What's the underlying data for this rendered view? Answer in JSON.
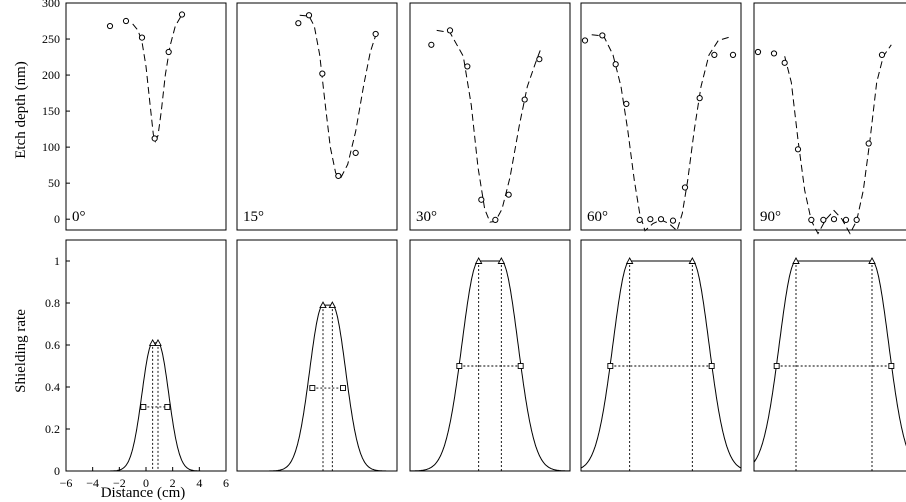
{
  "chart_data": {
    "type": "scatter",
    "layout": "2 rows x 5 columns, shared axes per row",
    "x_range": [
      -6,
      6
    ],
    "x_ticks": [
      -6,
      -4,
      -2,
      0,
      2,
      4,
      6
    ],
    "xlabel": "Distance (cm)",
    "top_row": {
      "ylabel": "Etch depth (nm)",
      "ylim": [
        -15,
        300
      ],
      "y_ticks": [
        0,
        50,
        100,
        150,
        200,
        250,
        300
      ],
      "series_note": "circles = measured points, dashed line = fitted profile",
      "panels": [
        {
          "label": "0°",
          "points": [
            [
              -2.7,
              268
            ],
            [
              -1.5,
              275
            ],
            [
              -0.3,
              252
            ],
            [
              0.65,
              112
            ],
            [
              1.7,
              232
            ],
            [
              2.7,
              284
            ]
          ],
          "curve": [
            [
              -1.0,
              271
            ],
            [
              -0.6,
              262
            ],
            [
              -0.3,
              246
            ],
            [
              0,
              212
            ],
            [
              0.3,
              160
            ],
            [
              0.55,
              118
            ],
            [
              0.7,
              108
            ],
            [
              0.9,
              116
            ],
            [
              1.15,
              150
            ],
            [
              1.45,
              200
            ],
            [
              1.8,
              240
            ],
            [
              2.2,
              268
            ],
            [
              2.7,
              284
            ]
          ]
        },
        {
          "label": "15°",
          "points": [
            [
              -1.4,
              272
            ],
            [
              -0.6,
              283
            ],
            [
              0.4,
              202
            ],
            [
              1.6,
              60
            ],
            [
              2.9,
              92
            ],
            [
              4.4,
              257
            ]
          ],
          "curve": [
            [
              -1.3,
              283
            ],
            [
              -0.6,
              282
            ],
            [
              -0.2,
              268
            ],
            [
              0.2,
              228
            ],
            [
              0.6,
              162
            ],
            [
              1.0,
              100
            ],
            [
              1.4,
              64
            ],
            [
              1.8,
              58
            ],
            [
              2.3,
              76
            ],
            [
              2.9,
              122
            ],
            [
              3.5,
              186
            ],
            [
              4.0,
              232
            ],
            [
              4.4,
              255
            ]
          ]
        },
        {
          "label": "30°",
          "points": [
            [
              -4.4,
              242
            ],
            [
              -3.0,
              262
            ],
            [
              -1.7,
              212
            ],
            [
              -0.65,
              27
            ],
            [
              0.4,
              -1
            ],
            [
              1.4,
              34
            ],
            [
              2.6,
              166
            ],
            [
              3.7,
              222
            ]
          ],
          "curve": [
            [
              -4.0,
              262
            ],
            [
              -3.0,
              259
            ],
            [
              -2.0,
              226
            ],
            [
              -1.4,
              158
            ],
            [
              -0.9,
              72
            ],
            [
              -0.4,
              14
            ],
            [
              0,
              -4
            ],
            [
              0.4,
              -3
            ],
            [
              0.9,
              14
            ],
            [
              1.5,
              58
            ],
            [
              2.2,
              130
            ],
            [
              2.8,
              184
            ],
            [
              3.4,
              216
            ],
            [
              3.8,
              236
            ]
          ]
        },
        {
          "label": "60°",
          "points": [
            [
              -5.7,
              248
            ],
            [
              -4.4,
              255
            ],
            [
              -3.4,
              215
            ],
            [
              -2.6,
              160
            ],
            [
              -1.6,
              -1
            ],
            [
              -0.8,
              0
            ],
            [
              0,
              0
            ],
            [
              0.9,
              -2
            ],
            [
              1.8,
              44
            ],
            [
              2.9,
              168
            ],
            [
              4.0,
              228
            ],
            [
              5.4,
              228
            ]
          ],
          "curve": [
            [
              -5.2,
              256
            ],
            [
              -4.3,
              254
            ],
            [
              -3.6,
              228
            ],
            [
              -3.0,
              184
            ],
            [
              -2.5,
              124
            ],
            [
              -2.0,
              54
            ],
            [
              -1.6,
              8
            ],
            [
              -1.2,
              -16
            ],
            [
              -0.6,
              -6
            ],
            [
              0,
              -1
            ],
            [
              0.6,
              -6
            ],
            [
              1.2,
              -16
            ],
            [
              1.6,
              8
            ],
            [
              2.0,
              54
            ],
            [
              2.5,
              124
            ],
            [
              3.0,
              184
            ],
            [
              3.6,
              228
            ],
            [
              4.3,
              248
            ],
            [
              5.2,
              253
            ]
          ]
        },
        {
          "label": "90°",
          "points": [
            [
              -5.7,
              232
            ],
            [
              -4.5,
              230
            ],
            [
              -3.7,
              217
            ],
            [
              -2.7,
              97
            ],
            [
              -1.7,
              -1
            ],
            [
              -0.8,
              -1
            ],
            [
              0,
              0
            ],
            [
              0.9,
              -1
            ],
            [
              1.7,
              -1
            ],
            [
              2.6,
              105
            ],
            [
              3.6,
              228
            ]
          ],
          "curve": [
            [
              -3.7,
              226
            ],
            [
              -3.2,
              190
            ],
            [
              -2.7,
              110
            ],
            [
              -2.2,
              40
            ],
            [
              -1.7,
              -2
            ],
            [
              -1.2,
              -20
            ],
            [
              -0.6,
              0
            ],
            [
              0,
              12
            ],
            [
              0.6,
              0
            ],
            [
              1.2,
              -20
            ],
            [
              1.7,
              -2
            ],
            [
              2.2,
              40
            ],
            [
              2.7,
              110
            ],
            [
              3.2,
              190
            ],
            [
              3.7,
              226
            ],
            [
              4.3,
              242
            ]
          ]
        }
      ]
    },
    "bottom_row": {
      "ylabel": "Shielding rate",
      "ylim": [
        0,
        1.1
      ],
      "y_ticks": [
        0,
        0.2,
        0.4,
        0.6,
        0.8,
        1
      ],
      "y_tick_labels": [
        "0",
        "0.2",
        "0.4",
        "0.6",
        "0.8",
        "1"
      ],
      "series_note": "solid = shielding rate profile, triangles = peak edges, squares = half-maximum points",
      "panels": [
        {
          "peak": 0.61,
          "top_half_width": 0.2,
          "sigma": 0.8,
          "triangles_x": [
            0.5,
            0.9
          ],
          "squares": [
            [
              -0.2,
              0.305
            ],
            [
              1.6,
              0.305
            ]
          ]
        },
        {
          "peak": 0.79,
          "top_half_width": 0.35,
          "sigma": 1.0,
          "triangles_x": [
            0.45,
            1.15
          ],
          "squares": [
            [
              -0.35,
              0.395
            ],
            [
              1.95,
              0.395
            ]
          ]
        },
        {
          "peak": 1.0,
          "top_half_width": 0.85,
          "sigma": 1.25,
          "triangles_x": [
            -0.85,
            0.85
          ],
          "squares": [
            [
              -2.3,
              0.5
            ],
            [
              2.3,
              0.5
            ]
          ]
        },
        {
          "peak": 1.0,
          "top_half_width": 2.35,
          "sigma": 1.25,
          "triangles_x": [
            -2.35,
            2.35
          ],
          "squares": [
            [
              -3.8,
              0.5
            ],
            [
              3.8,
              0.5
            ]
          ]
        },
        {
          "peak": 1.0,
          "top_half_width": 2.85,
          "sigma": 1.25,
          "triangles_x": [
            -2.85,
            2.85
          ],
          "squares": [
            [
              -4.3,
              0.5
            ],
            [
              4.3,
              0.5
            ]
          ]
        }
      ]
    }
  }
}
